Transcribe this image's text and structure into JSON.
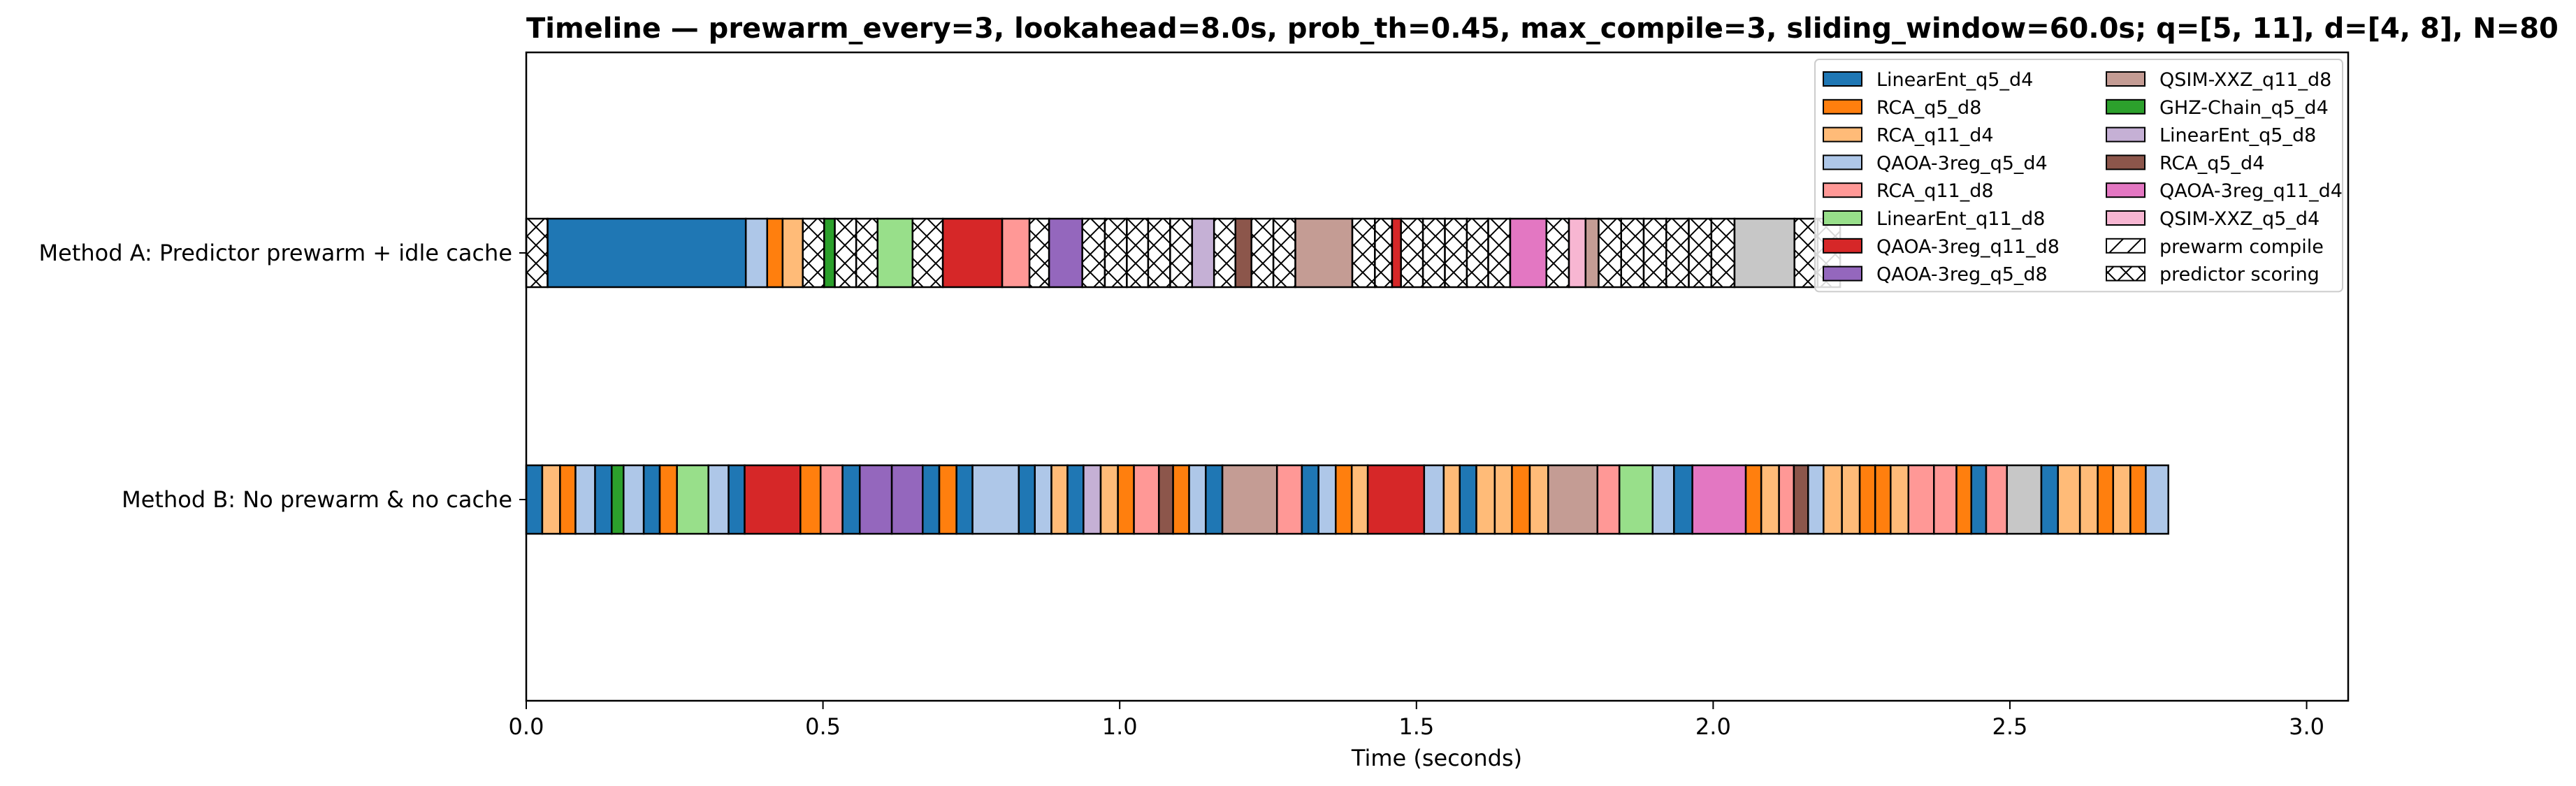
{
  "chart_data": {
    "type": "gantt",
    "title": "Timeline — prewarm_every=3, lookahead=8.0s, prob_th=0.45, max_compile=3, sliding_window=60.0s; q=[5, 11], d=[4, 8], N=80",
    "xlabel": "Time (seconds)",
    "xlim": [
      0,
      3.07
    ],
    "xticks": [
      "0.0",
      "0.5",
      "1.0",
      "1.5",
      "2.0",
      "2.5",
      "3.0"
    ],
    "grid": false,
    "legend_position": "top-right",
    "legend": [
      {
        "label": "LinearEnt_q5_d4",
        "key": "LE54",
        "color": "#1f77b4"
      },
      {
        "label": "RCA_q5_d8",
        "key": "RCA58",
        "color": "#ff7f0e"
      },
      {
        "label": "RCA_q11_d4",
        "key": "RCA114",
        "color": "#ffbb78"
      },
      {
        "label": "QAOA-3reg_q5_d4",
        "key": "Q54",
        "color": "#aec7e8"
      },
      {
        "label": "RCA_q11_d8",
        "key": "RCA118",
        "color": "#ff9896"
      },
      {
        "label": "LinearEnt_q11_d8",
        "key": "LE118",
        "color": "#98df8a"
      },
      {
        "label": "QAOA-3reg_q11_d8",
        "key": "Q118",
        "color": "#d62728"
      },
      {
        "label": "QAOA-3reg_q5_d8",
        "key": "Q58",
        "color": "#9467bd"
      },
      {
        "label": "QSIM-XXZ_q11_d8",
        "key": "X118",
        "color": "#c49c94"
      },
      {
        "label": "GHZ-Chain_q5_d4",
        "key": "GHZ54",
        "color": "#2ca02c"
      },
      {
        "label": "LinearEnt_q5_d8",
        "key": "LE58",
        "color": "#c5b0d5"
      },
      {
        "label": "RCA_q5_d4",
        "key": "RCA54",
        "color": "#8c564b"
      },
      {
        "label": "QAOA-3reg_q11_d4",
        "key": "Q114",
        "color": "#e377c2"
      },
      {
        "label": "QSIM-XXZ_q5_d4",
        "key": "X54",
        "color": "#f7b6d2"
      },
      {
        "label": "prewarm compile",
        "key": "PC",
        "color": "#ffffff",
        "hatch": "diagonal"
      },
      {
        "label": "predictor scoring",
        "key": "PS",
        "color": "#ffffff",
        "hatch": "cross"
      }
    ],
    "rows": [
      {
        "name": "Method A: Predictor prewarm + idle cache",
        "segments": [
          [
            "PS",
            0.0,
            0.036
          ],
          [
            "LE54",
            0.036,
            0.37
          ],
          [
            "Q54",
            0.37,
            0.406
          ],
          [
            "RCA58",
            0.406,
            0.432
          ],
          [
            "RCA114",
            0.432,
            0.466
          ],
          [
            "PS",
            0.466,
            0.502
          ],
          [
            "GHZ54",
            0.502,
            0.52
          ],
          [
            "PS",
            0.52,
            0.556
          ],
          [
            "PS",
            0.556,
            0.592
          ],
          [
            "LE118",
            0.592,
            0.651
          ],
          [
            "PS",
            0.651,
            0.702
          ],
          [
            "Q118",
            0.702,
            0.802
          ],
          [
            "RCA118",
            0.802,
            0.848
          ],
          [
            "PS",
            0.848,
            0.881
          ],
          [
            "Q58",
            0.881,
            0.937
          ],
          [
            "PS",
            0.937,
            0.975
          ],
          [
            "PS",
            0.975,
            1.012
          ],
          [
            "PS",
            1.012,
            1.048
          ],
          [
            "PS",
            1.048,
            1.085
          ],
          [
            "PS",
            1.085,
            1.122
          ],
          [
            "LE58",
            1.122,
            1.159
          ],
          [
            "PS",
            1.159,
            1.195
          ],
          [
            "RCA54",
            1.195,
            1.222
          ],
          [
            "PS",
            1.222,
            1.259
          ],
          [
            "PS",
            1.259,
            1.296
          ],
          [
            "X118",
            1.296,
            1.392
          ],
          [
            "PS",
            1.392,
            1.43
          ],
          [
            "PS",
            1.43,
            1.459
          ],
          [
            "Q118",
            1.459,
            1.474
          ],
          [
            "PS",
            1.474,
            1.511
          ],
          [
            "PS",
            1.511,
            1.548
          ],
          [
            "PS",
            1.548,
            1.585
          ],
          [
            "PS",
            1.585,
            1.621
          ],
          [
            "PS",
            1.621,
            1.658
          ],
          [
            "Q114",
            1.658,
            1.719
          ],
          [
            "PS",
            1.719,
            1.757
          ],
          [
            "X54",
            1.757,
            1.785
          ],
          [
            "X118",
            1.785,
            1.807
          ],
          [
            "PS",
            1.807,
            1.845
          ],
          [
            "PS",
            1.845,
            1.883
          ],
          [
            "PS",
            1.883,
            1.921
          ],
          [
            "PS",
            1.921,
            1.959
          ],
          [
            "PS",
            1.959,
            1.997
          ],
          [
            "PS",
            1.997,
            2.036
          ],
          [
            "Xgray",
            2.036,
            2.137
          ],
          [
            "PS",
            2.137,
            2.176
          ],
          [
            "PS",
            2.176,
            2.214
          ]
        ]
      },
      {
        "name": "Method B: No prewarm & no cache",
        "segments": [
          [
            "LE54",
            0.0,
            0.027
          ],
          [
            "RCA114",
            0.027,
            0.057
          ],
          [
            "RCA58",
            0.057,
            0.083
          ],
          [
            "Q54",
            0.083,
            0.116
          ],
          [
            "LE54",
            0.116,
            0.144
          ],
          [
            "GHZ54",
            0.144,
            0.164
          ],
          [
            "Q54",
            0.164,
            0.198
          ],
          [
            "LE54",
            0.198,
            0.225
          ],
          [
            "RCA58",
            0.225,
            0.254
          ],
          [
            "LE118",
            0.254,
            0.307
          ],
          [
            "Q54",
            0.307,
            0.341
          ],
          [
            "LE54",
            0.341,
            0.368
          ],
          [
            "Q118",
            0.368,
            0.462
          ],
          [
            "RCA58",
            0.462,
            0.496
          ],
          [
            "RCA118",
            0.496,
            0.533
          ],
          [
            "LE54",
            0.533,
            0.562
          ],
          [
            "Q58",
            0.562,
            0.616
          ],
          [
            "Q58",
            0.616,
            0.668
          ],
          [
            "LE54",
            0.668,
            0.696
          ],
          [
            "RCA58",
            0.696,
            0.725
          ],
          [
            "LE54",
            0.725,
            0.752
          ],
          [
            "Q54",
            0.752,
            0.83
          ],
          [
            "LE54",
            0.83,
            0.857
          ],
          [
            "Q54",
            0.857,
            0.885
          ],
          [
            "RCA114",
            0.885,
            0.912
          ],
          [
            "LE54",
            0.912,
            0.939
          ],
          [
            "LE58",
            0.939,
            0.968
          ],
          [
            "RCA114",
            0.968,
            0.997
          ],
          [
            "RCA58",
            0.997,
            1.024
          ],
          [
            "RCA118",
            1.024,
            1.066
          ],
          [
            "RCA54",
            1.066,
            1.09
          ],
          [
            "RCA58",
            1.09,
            1.117
          ],
          [
            "Q54",
            1.117,
            1.145
          ],
          [
            "LE54",
            1.145,
            1.173
          ],
          [
            "X118",
            1.173,
            1.265
          ],
          [
            "RCA118",
            1.265,
            1.307
          ],
          [
            "LE54",
            1.307,
            1.335
          ],
          [
            "Q54",
            1.335,
            1.364
          ],
          [
            "RCA58",
            1.364,
            1.391
          ],
          [
            "RCA114",
            1.391,
            1.418
          ],
          [
            "Q118",
            1.418,
            1.513
          ],
          [
            "Q54",
            1.513,
            1.546
          ],
          [
            "RCA114",
            1.546,
            1.573
          ],
          [
            "LE54",
            1.573,
            1.601
          ],
          [
            "RCA114",
            1.601,
            1.632
          ],
          [
            "RCA114",
            1.632,
            1.661
          ],
          [
            "RCA58",
            1.661,
            1.691
          ],
          [
            "RCA114",
            1.691,
            1.722
          ],
          [
            "X118",
            1.722,
            1.805
          ],
          [
            "RCA118",
            1.805,
            1.842
          ],
          [
            "LE118",
            1.842,
            1.898
          ],
          [
            "Q54",
            1.898,
            1.934
          ],
          [
            "LE54",
            1.934,
            1.965
          ],
          [
            "Q114",
            1.965,
            2.055
          ],
          [
            "RCA58",
            2.055,
            2.081
          ],
          [
            "RCA114",
            2.081,
            2.111
          ],
          [
            "RCA118",
            2.111,
            2.136
          ],
          [
            "RCA54",
            2.136,
            2.16
          ],
          [
            "Q54",
            2.16,
            2.186
          ],
          [
            "RCA114",
            2.186,
            2.217
          ],
          [
            "RCA114",
            2.217,
            2.247
          ],
          [
            "RCA58",
            2.247,
            2.273
          ],
          [
            "RCA58",
            2.273,
            2.299
          ],
          [
            "RCA114",
            2.299,
            2.329
          ],
          [
            "RCA118",
            2.329,
            2.372
          ],
          [
            "RCA118",
            2.372,
            2.41
          ],
          [
            "RCA58",
            2.41,
            2.435
          ],
          [
            "LE54",
            2.435,
            2.46
          ],
          [
            "RCA118",
            2.46,
            2.495
          ],
          [
            "Xgray",
            2.495,
            2.553
          ],
          [
            "LE54",
            2.553,
            2.581
          ],
          [
            "RCA114",
            2.581,
            2.618
          ],
          [
            "RCA114",
            2.618,
            2.648
          ],
          [
            "RCA58",
            2.648,
            2.674
          ],
          [
            "RCA114",
            2.674,
            2.703
          ],
          [
            "RCA58",
            2.703,
            2.729
          ],
          [
            "Q54",
            2.729,
            2.767
          ]
        ]
      }
    ]
  }
}
